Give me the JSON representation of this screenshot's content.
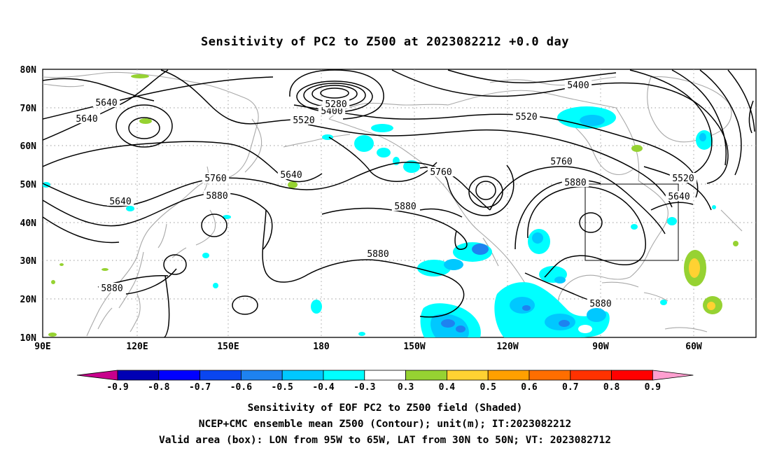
{
  "title": "Sensitivity of PC2 to Z500 at 2023082212 +0.0 day",
  "map": {
    "lat_labels": [
      "80N",
      "70N",
      "60N",
      "50N",
      "40N",
      "30N",
      "20N",
      "10N"
    ],
    "lon_labels": [
      "90E",
      "120E",
      "150E",
      "180",
      "150W",
      "120W",
      "90W",
      "60W"
    ],
    "box": {
      "lon_range": "95W to 65W",
      "lat_range": "30N to 50N"
    }
  },
  "contour_labels": [
    {
      "text": "5640"
    },
    {
      "text": "5640"
    },
    {
      "text": "5640"
    },
    {
      "text": "5640"
    },
    {
      "text": "5640"
    },
    {
      "text": "5400"
    },
    {
      "text": "5400"
    },
    {
      "text": "5280"
    },
    {
      "text": "5520"
    },
    {
      "text": "5520"
    },
    {
      "text": "5520"
    },
    {
      "text": "5760"
    },
    {
      "text": "5760"
    },
    {
      "text": "5760"
    },
    {
      "text": "5880"
    },
    {
      "text": "5880"
    },
    {
      "text": "5880"
    },
    {
      "text": "5880"
    },
    {
      "text": "5880"
    },
    {
      "text": "5880"
    }
  ],
  "colorbar": {
    "labels": [
      "-0.9",
      "-0.8",
      "-0.7",
      "-0.6",
      "-0.5",
      "-0.4",
      "-0.3",
      "0.3",
      "0.4",
      "0.5",
      "0.6",
      "0.7",
      "0.8",
      "0.9"
    ],
    "colors": [
      "#c8008c",
      "#0000b4",
      "#0000ff",
      "#0a46f0",
      "#1e82f0",
      "#00c8ff",
      "#00ffff",
      "#ffffff",
      "#96d232",
      "#ffd232",
      "#ffa000",
      "#ff6e00",
      "#ff3200",
      "#ff0000",
      "#ff9fd0"
    ]
  },
  "captions": {
    "line1": "Sensitivity of EOF PC2 to Z500 field (Shaded)",
    "line2": "NCEP+CMC ensemble mean Z500 (Contour); unit(m); IT:2023082212",
    "line3": "Valid area (box): LON from 95W to 65W, LAT from 30N to 50N; VT: 2023082712"
  }
}
